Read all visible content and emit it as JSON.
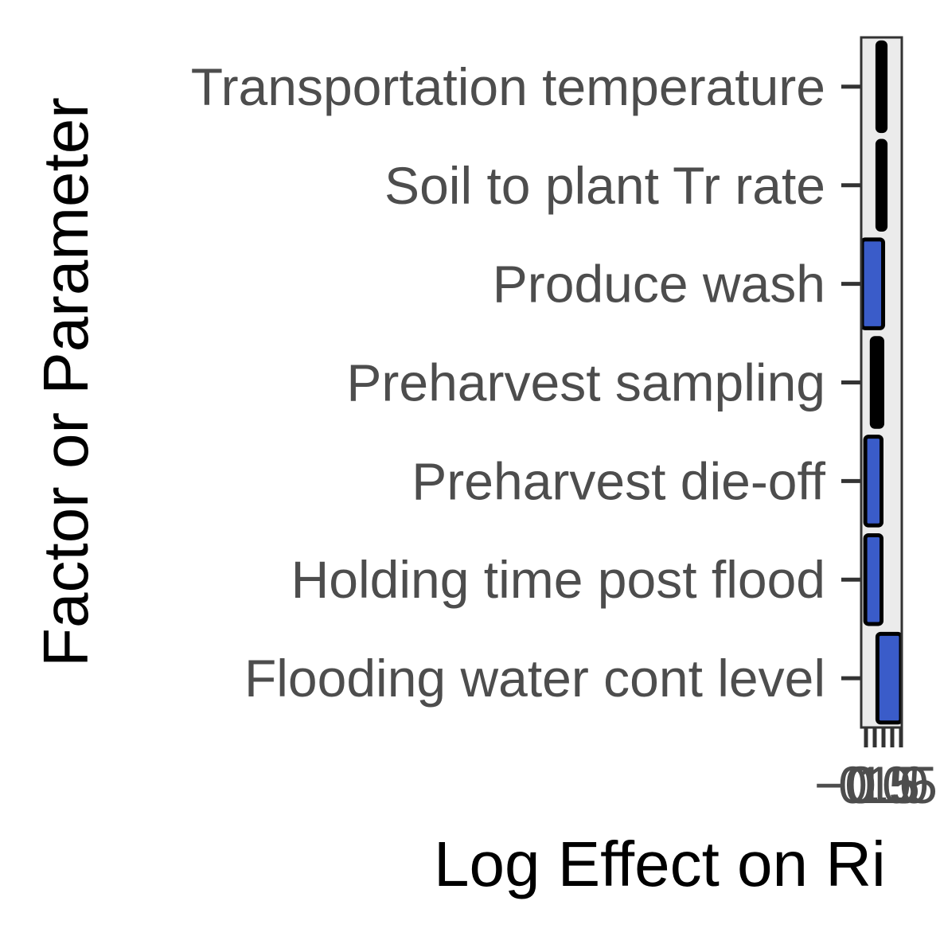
{
  "chart_data": {
    "type": "bar",
    "orientation": "horizontal",
    "xlabel": "Log Effect on Ri",
    "ylabel": "Factor or Parameter",
    "xlim": [
      -0.32,
      0.68
    ],
    "grid": false,
    "legend": "none",
    "xticks": [
      "−0.5",
      "0.0",
      "0.5",
      "1.0",
      "1.5"
    ],
    "categories": [
      "Transportation temperature",
      "Soil to plant Tr rate",
      "Produce wash",
      "Preharvest sampling",
      "Preharvest die-off",
      "Holding time post flood",
      "Flooding water cont level"
    ],
    "bars": [
      {
        "start": 0.08,
        "end": 0.28,
        "fill": "#000000"
      },
      {
        "start": 0.08,
        "end": 0.28,
        "fill": "#000000"
      },
      {
        "start": -0.3,
        "end": 0.22,
        "fill": "#3a5cc9"
      },
      {
        "start": -0.06,
        "end": 0.2,
        "fill": "#000000"
      },
      {
        "start": -0.22,
        "end": 0.18,
        "fill": "#3a5cc9"
      },
      {
        "start": -0.22,
        "end": 0.18,
        "fill": "#3a5cc9"
      },
      {
        "start": 0.08,
        "end": 0.66,
        "fill": "#3a5cc9"
      }
    ],
    "panel_background": "#ebebeb",
    "outline_color": "#000000"
  }
}
